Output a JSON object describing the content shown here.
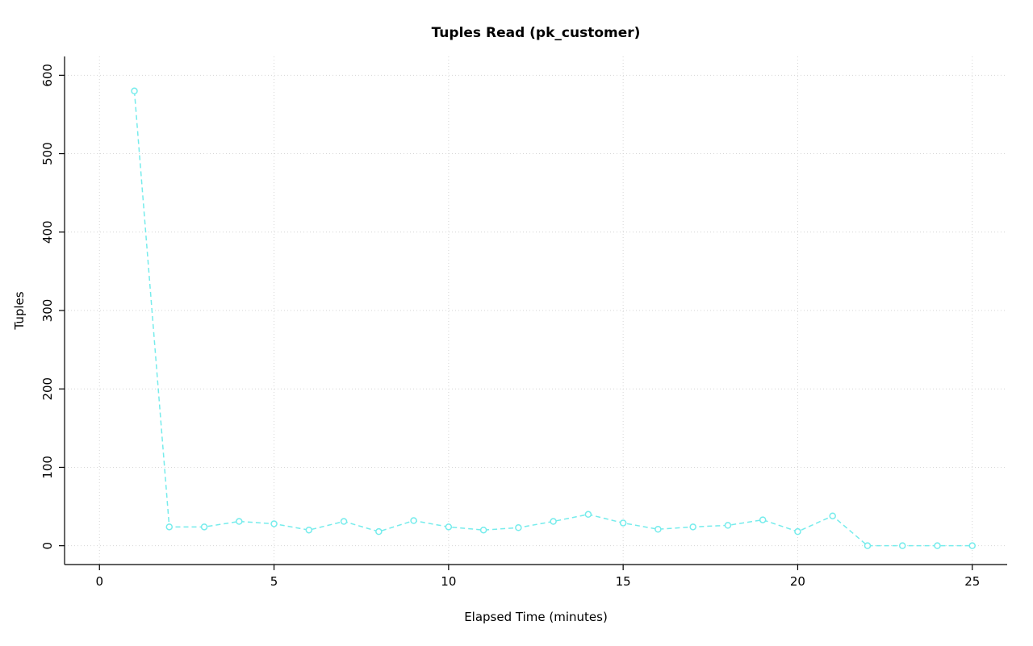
{
  "chart_data": {
    "type": "line",
    "title": "Tuples Read (pk_customer)",
    "xlabel": "Elapsed Time (minutes)",
    "ylabel": "Tuples",
    "x": [
      1,
      2,
      3,
      4,
      5,
      6,
      7,
      8,
      9,
      10,
      11,
      12,
      13,
      14,
      15,
      16,
      17,
      18,
      19,
      20,
      21,
      22,
      23,
      24,
      25
    ],
    "y": [
      580,
      24,
      24,
      31,
      28,
      20,
      31,
      18,
      32,
      24,
      20,
      23,
      31,
      40,
      29,
      21,
      24,
      26,
      33,
      18,
      38,
      0,
      0,
      0,
      0
    ],
    "xlim": [
      0,
      25
    ],
    "ylim": [
      0,
      600
    ],
    "xticks": [
      0,
      5,
      10,
      15,
      20,
      25
    ],
    "yticks": [
      0,
      100,
      200,
      300,
      400,
      500,
      600
    ],
    "grid": true,
    "legend_position": "none",
    "series_color": "#76ECEC",
    "grid_color": "#d6d6d6",
    "axis_color": "#000000",
    "line_style": "dashed",
    "marker": "circle-open"
  }
}
